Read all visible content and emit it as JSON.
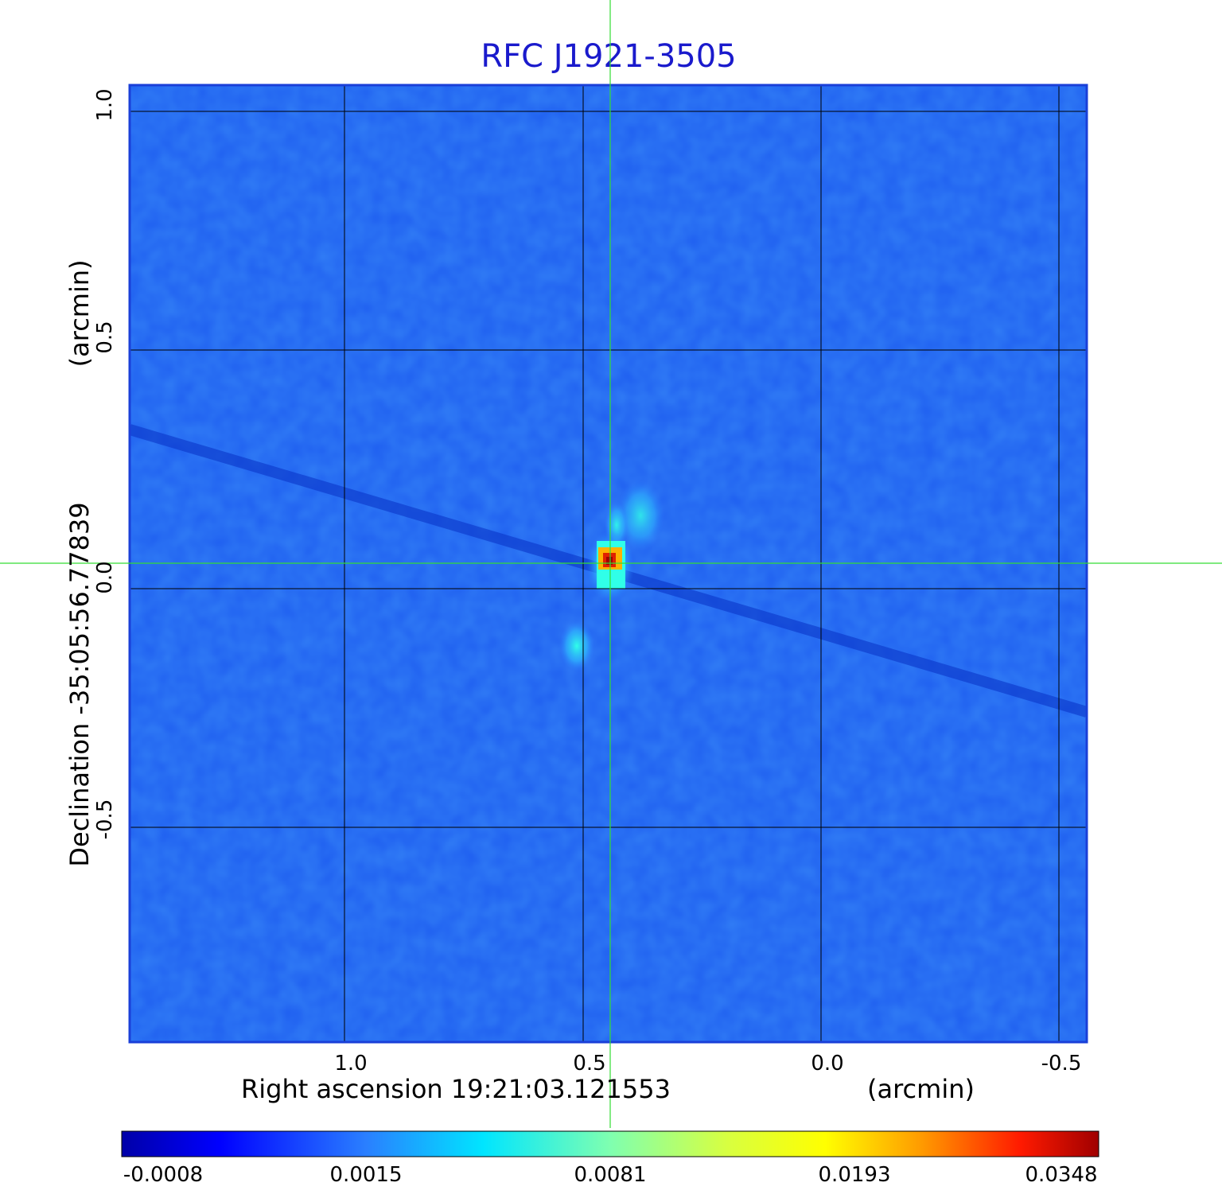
{
  "title": "RFC J1921-3505",
  "axes": {
    "x_label": "Right ascension  19:21:03.121553",
    "x_unit": "(arcmin)",
    "y_label": "Declination  -35:05:56.77839",
    "y_unit": "(arcmin)",
    "x_ticks": [
      "1.0",
      "0.5",
      "0.0",
      "-0.5"
    ],
    "y_ticks": [
      "1.0",
      "0.5",
      "0.0",
      "-0.5"
    ]
  },
  "colorbar": {
    "ticks": [
      "-0.0008",
      "0.0015",
      "0.0081",
      "0.0193",
      "0.0348"
    ]
  },
  "colors": {
    "title": "#1a1acc",
    "background_map": "#1f5ff0",
    "crosshair": "#33dd33",
    "grid": "#000000"
  },
  "chart_data": {
    "type": "heatmap",
    "title": "RFC J1921-3505",
    "xlabel": "Right ascension  19:21:03.121553",
    "ylabel": "Declination  -35:05:56.77839",
    "xlim": [
      1.45,
      -0.55
    ],
    "ylim": [
      -0.95,
      1.05
    ],
    "grid": true,
    "colorscale": "jet",
    "colorbar_ticks": [
      -0.0008,
      0.0015,
      0.0081,
      0.0193,
      0.0348
    ],
    "crosshair": [
      0.445,
      0.05
    ],
    "sources": [
      {
        "x": 0.445,
        "y": 0.06,
        "peak": 0.0348
      },
      {
        "x": 0.4,
        "y": 0.16,
        "peak": 0.004
      },
      {
        "x": 0.5,
        "y": -0.12,
        "peak": 0.005
      }
    ]
  }
}
